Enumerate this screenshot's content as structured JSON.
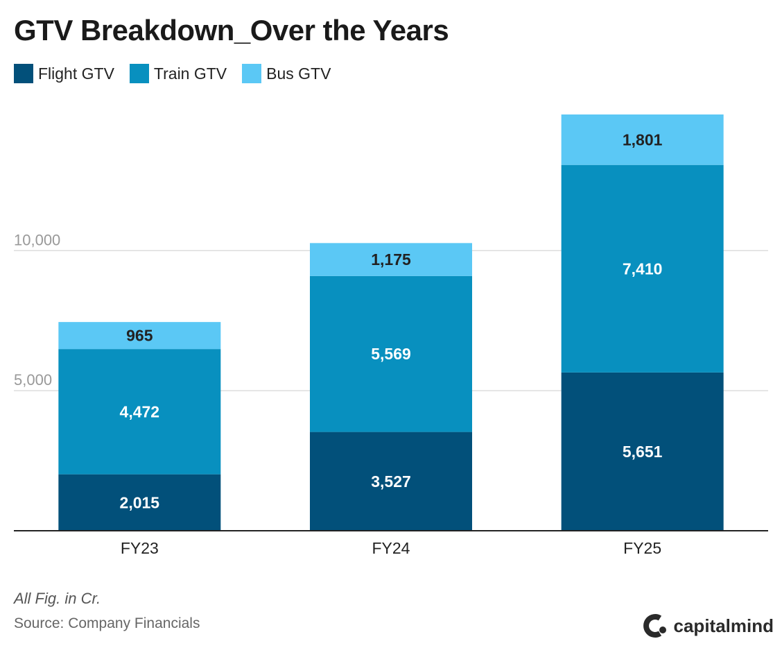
{
  "title": "GTV Breakdown_Over the Years",
  "footnote": "All Fig. in Cr.",
  "source": "Source: Company Financials",
  "brand": {
    "name": "capitalmind",
    "icon": "capitalmind-logo-icon"
  },
  "colors": {
    "flight": "#02507a",
    "train": "#0890bf",
    "bus": "#5bc8f5",
    "grid": "#dddddd",
    "axis": "#222222",
    "tick": "#999999"
  },
  "chart_data": {
    "type": "bar",
    "stacked": true,
    "title": "GTV Breakdown_Over the Years",
    "xlabel": "",
    "ylabel": "",
    "ylim": [
      0,
      14862
    ],
    "yticks": [
      5000,
      10000
    ],
    "ytick_labels": [
      "5,000",
      "10,000"
    ],
    "grid": true,
    "legend_position": "top-left",
    "categories": [
      "FY23",
      "FY24",
      "FY25"
    ],
    "series": [
      {
        "name": "Flight GTV",
        "color": "#02507a",
        "values": [
          2015,
          3527,
          5651
        ],
        "labels": [
          "2,015",
          "3,527",
          "5,651"
        ]
      },
      {
        "name": "Train GTV",
        "color": "#0890bf",
        "values": [
          4472,
          5569,
          7410
        ],
        "labels": [
          "4,472",
          "5,569",
          "7,410"
        ]
      },
      {
        "name": "Bus GTV",
        "color": "#5bc8f5",
        "values": [
          965,
          1175,
          1801
        ],
        "labels": [
          "965",
          "1,175",
          "1,801"
        ]
      }
    ]
  }
}
